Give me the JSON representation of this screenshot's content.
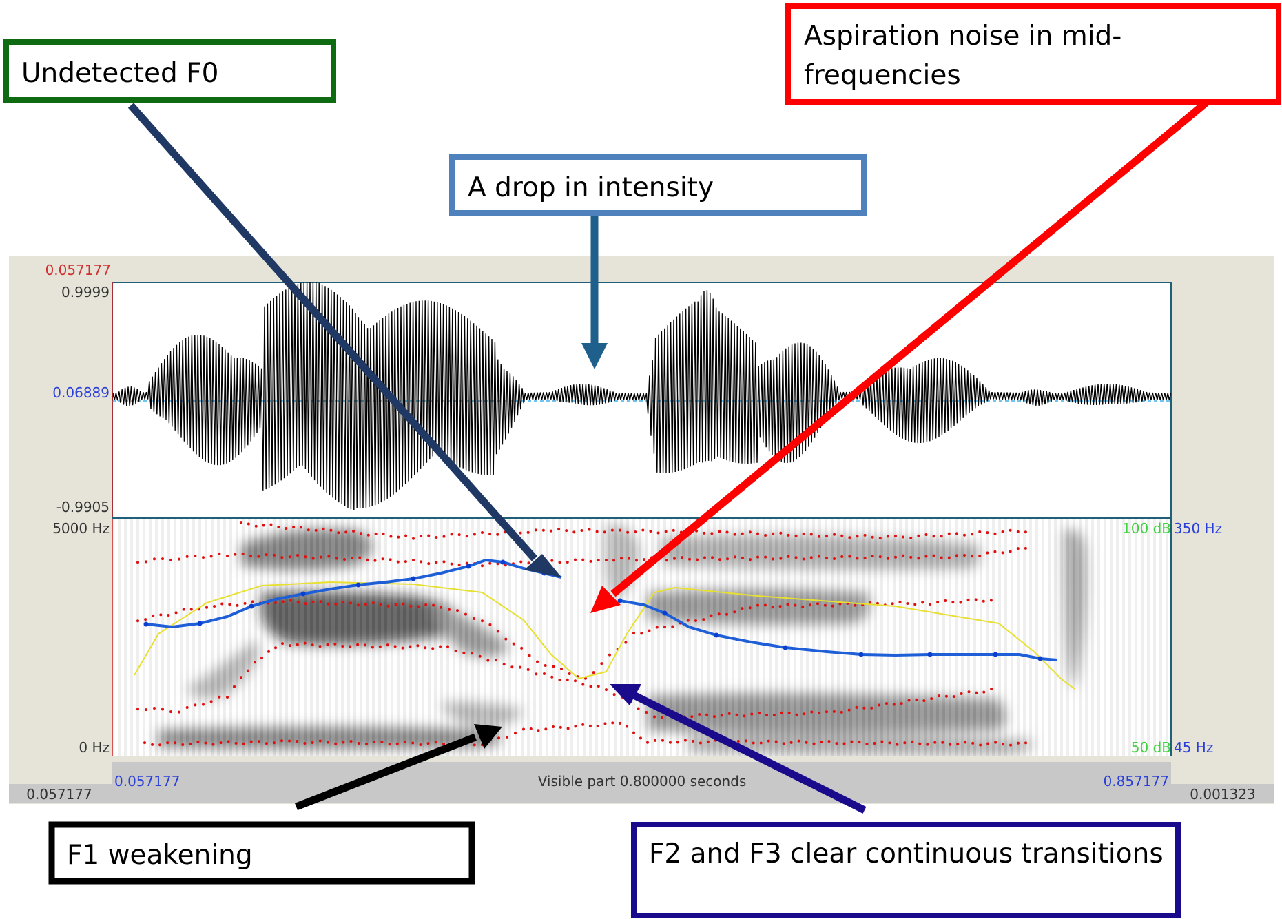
{
  "editor": {
    "cursor_time_top": "0.057177",
    "waveform": {
      "y_max": "0.9999",
      "y_mid": "0.06889",
      "y_min": "-0.9905"
    },
    "spectrogram": {
      "freq_top": "5000 Hz",
      "freq_bottom": "0 Hz",
      "intensity_top": "100 dB",
      "intensity_bottom": "50 dB",
      "pitch_top": "350 Hz",
      "pitch_bottom": "45 Hz"
    },
    "time_axis": {
      "start": "0.057177",
      "end": "0.857177",
      "visible_part": "Visible part 0.800000 seconds"
    },
    "bottom_bar": {
      "left_value": "0.057177",
      "right_value": "0.001323"
    }
  },
  "annotations": {
    "undetected_f0": "Undetected F0",
    "aspiration_line1": "Aspiration noise in mid-",
    "aspiration_line2": "frequencies",
    "intensity_drop": "A drop in intensity",
    "f1_weakening": "F1 weakening",
    "f2_f3_transitions": "F2 and F3 clear continuous transitions"
  },
  "colors": {
    "undetected_f0": "#0e6b12",
    "aspiration": "#ff0000",
    "intensity_drop": "#4f81bd",
    "f1_weakening": "#000000",
    "f2_f3_transitions": "#1a0a8c",
    "pitch": "#1e5fd8",
    "intensity": "#e8e030",
    "formant": "#e01010"
  }
}
